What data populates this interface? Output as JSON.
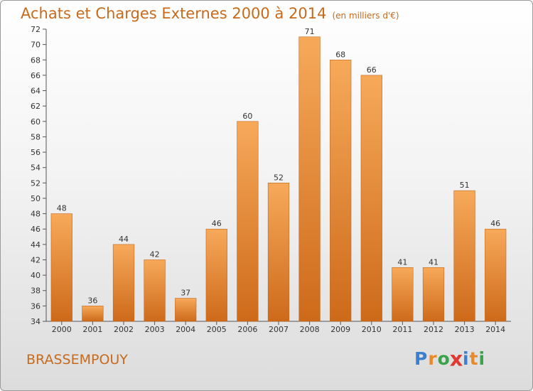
{
  "title": "Achats et Charges Externes 2000 à 2014",
  "unit": "(en milliers d'€)",
  "town": "BRASSEMPOUY",
  "logo": [
    "P",
    "r",
    "o",
    "x",
    "i",
    "t",
    "i"
  ],
  "colors": {
    "accent": "#c86a1c",
    "bar_top": "#f7a95a",
    "bar_bottom": "#cd6a1a",
    "logo": [
      "#3a7fd0",
      "#e88a2a",
      "#3aa24a",
      "#e03a30",
      "#3a7fd0",
      "#e88a2a",
      "#3aa24a"
    ]
  },
  "chart_data": {
    "type": "bar",
    "title": "Achats et Charges Externes 2000 à 2014",
    "categories": [
      "2000",
      "2001",
      "2002",
      "2003",
      "2004",
      "2005",
      "2006",
      "2007",
      "2008",
      "2009",
      "2010",
      "2011",
      "2012",
      "2013",
      "2014"
    ],
    "values": [
      48,
      36,
      44,
      42,
      37,
      46,
      60,
      52,
      71,
      68,
      66,
      41,
      41,
      51,
      46
    ],
    "ylim": [
      34,
      72
    ],
    "yticks": [
      34,
      36,
      38,
      40,
      42,
      44,
      46,
      48,
      50,
      52,
      54,
      56,
      58,
      60,
      62,
      64,
      66,
      68,
      70,
      72
    ],
    "grid": false,
    "xlabel": "",
    "ylabel": ""
  }
}
